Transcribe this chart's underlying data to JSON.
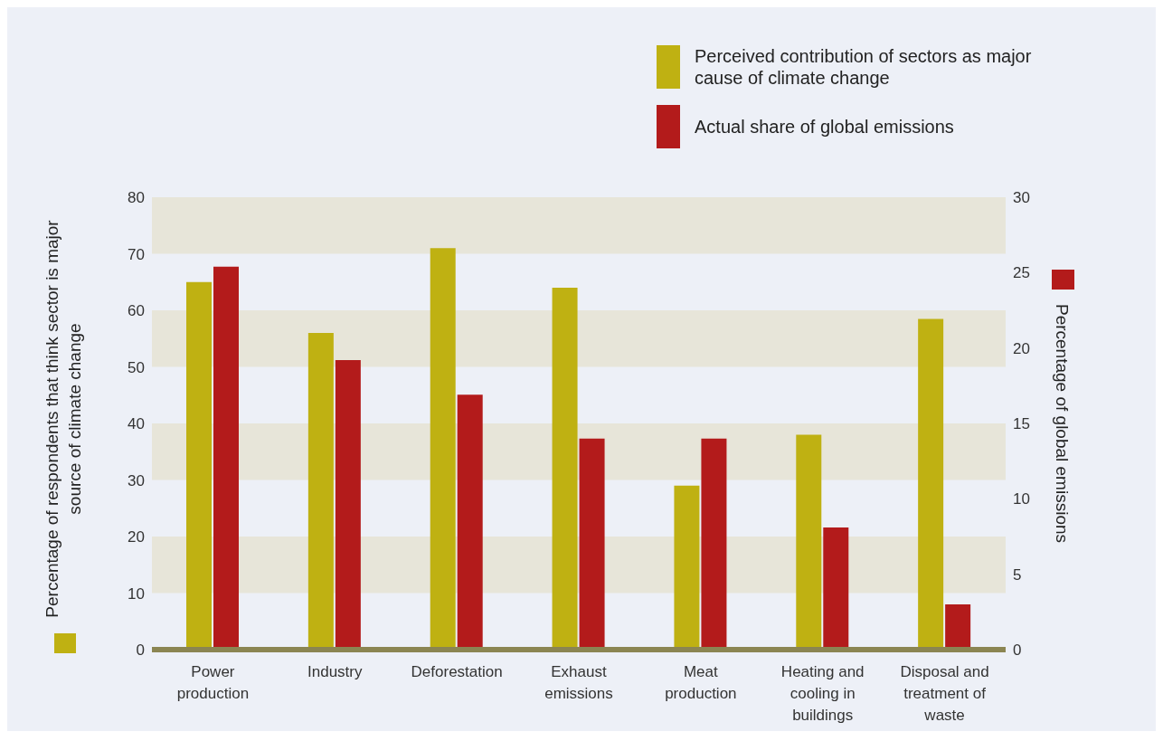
{
  "chart_data": {
    "type": "bar",
    "ylabel": "Percentage of respondents that think sector is major source of climate change",
    "y2label": "Percentage of global emissions",
    "categories": [
      "Power production",
      "Industry",
      "Deforestation",
      "Exhaust emissions",
      "Meat production",
      "Heating and cooling in buildings",
      "Disposal and treatment of waste"
    ],
    "series": [
      {
        "name": "Perceived contribution of sectors as major cause of climate change",
        "color": "#bfb112",
        "values": [
          65,
          56,
          71,
          64,
          29,
          38,
          58.5
        ]
      },
      {
        "name": "Actual share of global emissions",
        "color": "#b31b1b",
        "axis": "y2",
        "values": [
          25.4,
          19.2,
          16.9,
          14,
          14,
          8.1,
          3
        ]
      }
    ],
    "ylim": [
      0,
      80
    ],
    "yticks": [
      0,
      10,
      20,
      30,
      40,
      50,
      60,
      70,
      80
    ],
    "y2lim": [
      0,
      30
    ],
    "y2ticks": [
      0,
      5,
      10,
      15,
      20,
      25,
      30
    ],
    "bands": [
      {
        "axis": "y",
        "from": 10,
        "to": 20,
        "color": "#e7e5d9"
      },
      {
        "axis": "y",
        "from": 30,
        "to": 40,
        "color": "#e7e5d9"
      },
      {
        "axis": "y",
        "from": 50,
        "to": 60,
        "color": "#e7e5d9"
      },
      {
        "axis": "y",
        "from": 70,
        "to": 80,
        "color": "#e7e5d9"
      }
    ],
    "legend": "top right"
  }
}
